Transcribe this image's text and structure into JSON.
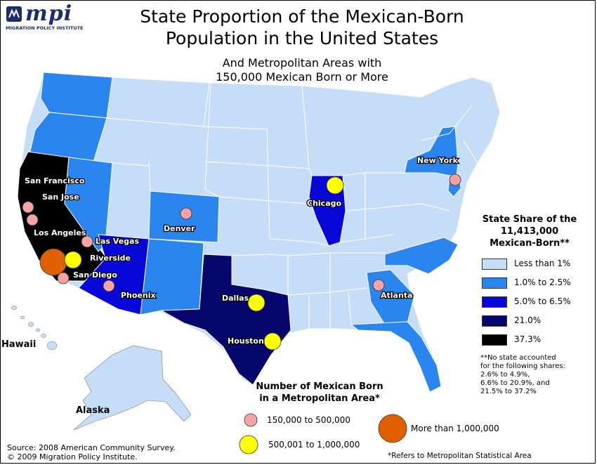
{
  "logo": {
    "text": "mpi",
    "subtext": "MIGRATION POLICY INSTITUTE"
  },
  "title": {
    "line1": "State Proportion of the Mexican-Born",
    "line2": "Population in the United States"
  },
  "subtitle": {
    "line1": "And Metropolitan Areas with",
    "line2": "150,000 Mexican Born or More"
  },
  "colors": {
    "lt1": "#c6ddf7",
    "r1_2_5": "#2a86ee",
    "r5_6_5": "#0707d8",
    "r21": "#06066c",
    "r37_3": "#000000",
    "small_metro": "#f5a3a3",
    "mid_metro": "#ffff00",
    "large_metro": "#e06000"
  },
  "state_legend": {
    "title_line1": "State Share of the",
    "title_line2": "11,413,000",
    "title_line3": "Mexican-Born**",
    "items": [
      {
        "label": "Less than 1%",
        "color": "#c6ddf7"
      },
      {
        "label": "1.0% to 2.5%",
        "color": "#2a86ee"
      },
      {
        "label": "5.0% to 6.5%",
        "color": "#0707d8"
      },
      {
        "label": "21.0%",
        "color": "#06066c"
      },
      {
        "label": "37.3%",
        "color": "#000000"
      }
    ],
    "note_lines": [
      "**No state accounted",
      "for the following shares:",
      "2.6% to 4.9%,",
      "6.6% to 20.9%, and",
      "21.5% to 37.2%"
    ]
  },
  "metro_legend": {
    "title_line1": "Number of Mexican Born",
    "title_line2": "in a Metropolitan Area*",
    "small": "150,000 to 500,000",
    "medium": "500,001 to 1,000,000",
    "large": "More than 1,000,000"
  },
  "metros": {
    "san_francisco": "San Francisco",
    "san_jose": "San Jose",
    "los_angeles": "Los Angeles",
    "las_vegas": "Las Vegas",
    "riverside": "Riverside",
    "san_diego": "San Diego",
    "phoenix": "Phoenix",
    "denver": "Denver",
    "dallas": "Dallas",
    "houston": "Houston",
    "chicago": "Chicago",
    "new_york": "New York",
    "atlanta": "Atlanta"
  },
  "places": {
    "hawaii": "Hawaii",
    "alaska": "Alaska"
  },
  "source": {
    "line1": "Source: 2008 American Community Survey.",
    "line2": "© 2009 Migration Policy Institute."
  },
  "footnote": "*Refers to Metropolitan Statistical Area"
}
